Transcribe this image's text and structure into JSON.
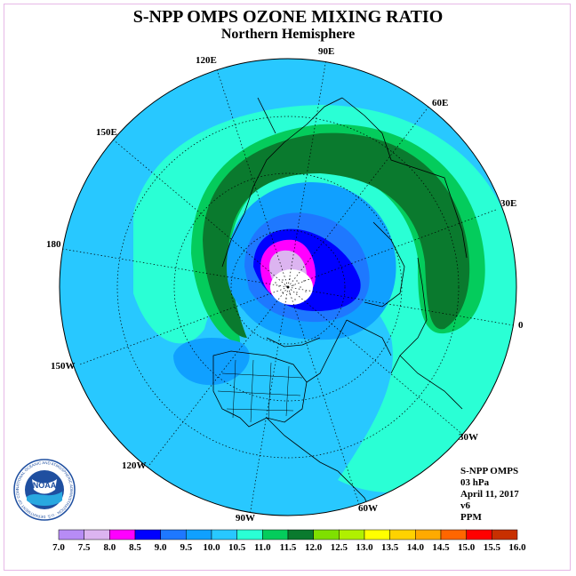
{
  "title": "S-NPP OMPS OZONE MIXING RATIO",
  "subtitle": "Northern Hemisphere",
  "longitude_labels": [
    "90E",
    "60E",
    "30E",
    "0",
    "30W",
    "60W",
    "90W",
    "120W",
    "150W",
    "180",
    "150E",
    "120E"
  ],
  "info": {
    "instrument": "S-NPP OMPS",
    "level": "03 hPa",
    "date": "April 11, 2017",
    "version": "v6",
    "units": "PPM"
  },
  "logo": {
    "text": "NOAA",
    "ring_text": "NATIONAL OCEANIC AND ATMOSPHERIC ADMINISTRATION · U.S. DEPARTMENT OF COMMERCE"
  },
  "colorbar": {
    "ticks": [
      "7.0",
      "7.5",
      "8.0",
      "8.5",
      "9.0",
      "9.5",
      "10.0",
      "10.5",
      "11.0",
      "11.5",
      "12.0",
      "12.5",
      "13.0",
      "13.5",
      "14.0",
      "14.5",
      "15.0",
      "15.5",
      "16.0"
    ],
    "colors": [
      "#b78cf5",
      "#dcb4f0",
      "#ff00ff",
      "#0000ff",
      "#1e78ff",
      "#10a0ff",
      "#28c8ff",
      "#2affd5",
      "#04cc5c",
      "#0a7a2e",
      "#7fe000",
      "#b0f000",
      "#ffff00",
      "#ffd200",
      "#ffaa00",
      "#ff6600",
      "#ff0000",
      "#c83000",
      "#8b5a2b"
    ]
  },
  "legend_colors": {
    "level_9_5": "#10a0ff",
    "level_10_0": "#28c8ff",
    "level_10_5": "#2affd5",
    "level_11_0": "#04cc5c",
    "level_11_5": "#0a7a2e",
    "level_8_5": "#0000ff",
    "level_8_0": "#ff00ff",
    "level_7_5": "#dcb4f0"
  }
}
